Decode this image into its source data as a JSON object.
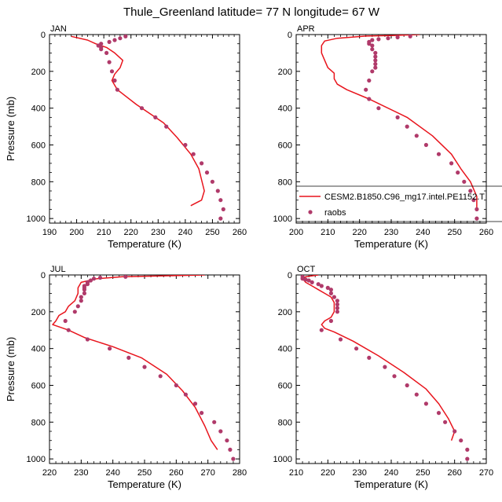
{
  "chart_data": {
    "type": "line",
    "title": "Thule_Greenland  latitude= 77 N longitude= 67 W",
    "colors": {
      "model": "#e8141c",
      "obs": "#b03a6a"
    },
    "legend": {
      "position": "inside-bottom-right of APR panel",
      "model_label": "CESM2.B1850.C96_mg17.intel.PE1152.T",
      "obs_label": "raobs"
    },
    "panels": [
      {
        "label": "JAN",
        "xlabel": "Temperature (K)",
        "ylabel": "Pressure (mb)",
        "xlim": [
          190,
          260
        ],
        "xticks": [
          190,
          200,
          210,
          220,
          230,
          240,
          250,
          260
        ],
        "ylim": [
          0,
          1025
        ],
        "yticks": [
          0,
          200,
          400,
          600,
          800,
          1000
        ],
        "series": [
          {
            "name": "model",
            "style": "line",
            "points": [
              [
                198,
                10
              ],
              [
                204,
                30
              ],
              [
                207,
                50
              ],
              [
                211,
                70
              ],
              [
                214,
                100
              ],
              [
                217,
                140
              ],
              [
                216,
                180
              ],
              [
                214,
                215
              ],
              [
                213,
                250
              ],
              [
                215,
                300
              ],
              [
                222,
                380
              ],
              [
                232,
                480
              ],
              [
                237,
                560
              ],
              [
                242,
                650
              ],
              [
                245,
                730
              ],
              [
                246,
                790
              ],
              [
                247,
                850
              ],
              [
                246,
                900
              ],
              [
                242,
                930
              ]
            ]
          },
          {
            "name": "raobs",
            "style": "points",
            "points": [
              [
                218,
                10
              ],
              [
                216,
                20
              ],
              [
                214,
                30
              ],
              [
                212,
                40
              ],
              [
                209,
                50
              ],
              [
                208,
                60
              ],
              [
                209,
                70
              ],
              [
                209,
                80
              ],
              [
                211,
                100
              ],
              [
                212,
                150
              ],
              [
                213,
                200
              ],
              [
                214,
                250
              ],
              [
                215,
                300
              ],
              [
                224,
                400
              ],
              [
                229,
                450
              ],
              [
                233,
                500
              ],
              [
                240,
                600
              ],
              [
                243,
                650
              ],
              [
                246,
                700
              ],
              [
                248,
                750
              ],
              [
                250,
                800
              ],
              [
                252,
                850
              ],
              [
                253,
                900
              ],
              [
                254,
                950
              ],
              [
                253,
                1000
              ]
            ]
          }
        ]
      },
      {
        "label": "APR",
        "xlabel": "Temperature (K)",
        "ylabel": "",
        "xlim": [
          200,
          260
        ],
        "xticks": [
          200,
          210,
          220,
          230,
          240,
          250,
          260
        ],
        "ylim": [
          0,
          1025
        ],
        "yticks": [
          0,
          200,
          400,
          600,
          800,
          1000
        ],
        "series": [
          {
            "name": "model",
            "style": "line",
            "points": [
              [
                239,
                0
              ],
              [
                230,
                5
              ],
              [
                222,
                8
              ],
              [
                213,
                20
              ],
              [
                209,
                35
              ],
              [
                208,
                60
              ],
              [
                208,
                100
              ],
              [
                209,
                140
              ],
              [
                210,
                180
              ],
              [
                212,
                210
              ],
              [
                212,
                240
              ],
              [
                213,
                270
              ],
              [
                216,
                300
              ],
              [
                223,
                350
              ],
              [
                235,
                450
              ],
              [
                243,
                550
              ],
              [
                249,
                650
              ],
              [
                252,
                730
              ],
              [
                255,
                800
              ],
              [
                257,
                880
              ],
              [
                257,
                940
              ]
            ]
          },
          {
            "name": "raobs",
            "style": "points",
            "points": [
              [
                236,
                10
              ],
              [
                232,
                15
              ],
              [
                229,
                20
              ],
              [
                226,
                25
              ],
              [
                224,
                30
              ],
              [
                223,
                40
              ],
              [
                223,
                50
              ],
              [
                224,
                60
              ],
              [
                224,
                80
              ],
              [
                225,
                100
              ],
              [
                225,
                120
              ],
              [
                225,
                140
              ],
              [
                225,
                160
              ],
              [
                225,
                180
              ],
              [
                224,
                200
              ],
              [
                223,
                250
              ],
              [
                222,
                300
              ],
              [
                223,
                350
              ],
              [
                226,
                400
              ],
              [
                232,
                450
              ],
              [
                235,
                500
              ],
              [
                238,
                550
              ],
              [
                241,
                600
              ],
              [
                245,
                650
              ],
              [
                249,
                700
              ],
              [
                251,
                750
              ],
              [
                253,
                800
              ],
              [
                255,
                850
              ],
              [
                256,
                900
              ],
              [
                257,
                950
              ],
              [
                257,
                1000
              ]
            ]
          }
        ]
      },
      {
        "label": "JUL",
        "xlabel": "Temperature (K)",
        "ylabel": "Pressure (mb)",
        "xlim": [
          220,
          280
        ],
        "xticks": [
          220,
          230,
          240,
          250,
          260,
          270,
          280
        ],
        "ylim": [
          0,
          1025
        ],
        "yticks": [
          0,
          200,
          400,
          600,
          800,
          1000
        ],
        "series": [
          {
            "name": "model",
            "style": "line",
            "points": [
              [
                269,
                0
              ],
              [
                255,
                5
              ],
              [
                243,
                10
              ],
              [
                235,
                20
              ],
              [
                230,
                40
              ],
              [
                229,
                70
              ],
              [
                229,
                100
              ],
              [
                228,
                140
              ],
              [
                226,
                170
              ],
              [
                225,
                200
              ],
              [
                223,
                220
              ],
              [
                222,
                250
              ],
              [
                221,
                270
              ],
              [
                226,
                300
              ],
              [
                231,
                340
              ],
              [
                240,
                390
              ],
              [
                249,
                450
              ],
              [
                257,
                540
              ],
              [
                262,
                630
              ],
              [
                266,
                720
              ],
              [
                269,
                820
              ],
              [
                271,
                900
              ],
              [
                273,
                950
              ]
            ]
          },
          {
            "name": "raobs",
            "style": "points",
            "points": [
              [
                244,
                10
              ],
              [
                236,
                15
              ],
              [
                234,
                20
              ],
              [
                233,
                30
              ],
              [
                232,
                40
              ],
              [
                232,
                50
              ],
              [
                231,
                60
              ],
              [
                231,
                70
              ],
              [
                231,
                80
              ],
              [
                231,
                100
              ],
              [
                230,
                120
              ],
              [
                230,
                140
              ],
              [
                229,
                170
              ],
              [
                228,
                200
              ],
              [
                225,
                250
              ],
              [
                226,
                300
              ],
              [
                232,
                350
              ],
              [
                239,
                400
              ],
              [
                245,
                450
              ],
              [
                250,
                500
              ],
              [
                255,
                550
              ],
              [
                260,
                600
              ],
              [
                263,
                650
              ],
              [
                266,
                700
              ],
              [
                268,
                750
              ],
              [
                272,
                800
              ],
              [
                274,
                850
              ],
              [
                276,
                900
              ],
              [
                277,
                950
              ],
              [
                278,
                1000
              ]
            ]
          }
        ]
      },
      {
        "label": "OCT",
        "xlabel": "Temperature (K)",
        "ylabel": "",
        "xlim": [
          210,
          270
        ],
        "xticks": [
          210,
          220,
          230,
          240,
          250,
          260,
          270
        ],
        "ylim": [
          0,
          1025
        ],
        "yticks": [
          0,
          200,
          400,
          600,
          800,
          1000
        ],
        "series": [
          {
            "name": "model",
            "style": "line",
            "points": [
              [
                217,
                0
              ],
              [
                213,
                10
              ],
              [
                212,
                20
              ],
              [
                213,
                40
              ],
              [
                215,
                60
              ],
              [
                217,
                80
              ],
              [
                219,
                100
              ],
              [
                221,
                120
              ],
              [
                222,
                150
              ],
              [
                222,
                180
              ],
              [
                222,
                200
              ],
              [
                221,
                230
              ],
              [
                219,
                250
              ],
              [
                218,
                270
              ],
              [
                219,
                290
              ],
              [
                222,
                310
              ],
              [
                228,
                360
              ],
              [
                236,
                440
              ],
              [
                244,
                530
              ],
              [
                251,
                620
              ],
              [
                255,
                700
              ],
              [
                258,
                780
              ],
              [
                260,
                850
              ],
              [
                259,
                900
              ]
            ]
          },
          {
            "name": "raobs",
            "style": "points",
            "points": [
              [
                212,
                10
              ],
              [
                212,
                20
              ],
              [
                213,
                25
              ],
              [
                214,
                30
              ],
              [
                215,
                40
              ],
              [
                217,
                50
              ],
              [
                218,
                60
              ],
              [
                220,
                70
              ],
              [
                221,
                80
              ],
              [
                221,
                100
              ],
              [
                222,
                120
              ],
              [
                223,
                140
              ],
              [
                223,
                160
              ],
              [
                223,
                180
              ],
              [
                223,
                200
              ],
              [
                221,
                250
              ],
              [
                218,
                300
              ],
              [
                224,
                350
              ],
              [
                229,
                400
              ],
              [
                233,
                450
              ],
              [
                238,
                500
              ],
              [
                241,
                550
              ],
              [
                245,
                600
              ],
              [
                248,
                650
              ],
              [
                251,
                700
              ],
              [
                255,
                750
              ],
              [
                257,
                800
              ],
              [
                260,
                850
              ],
              [
                262,
                900
              ],
              [
                264,
                950
              ],
              [
                264,
                1000
              ]
            ]
          }
        ]
      }
    ]
  }
}
